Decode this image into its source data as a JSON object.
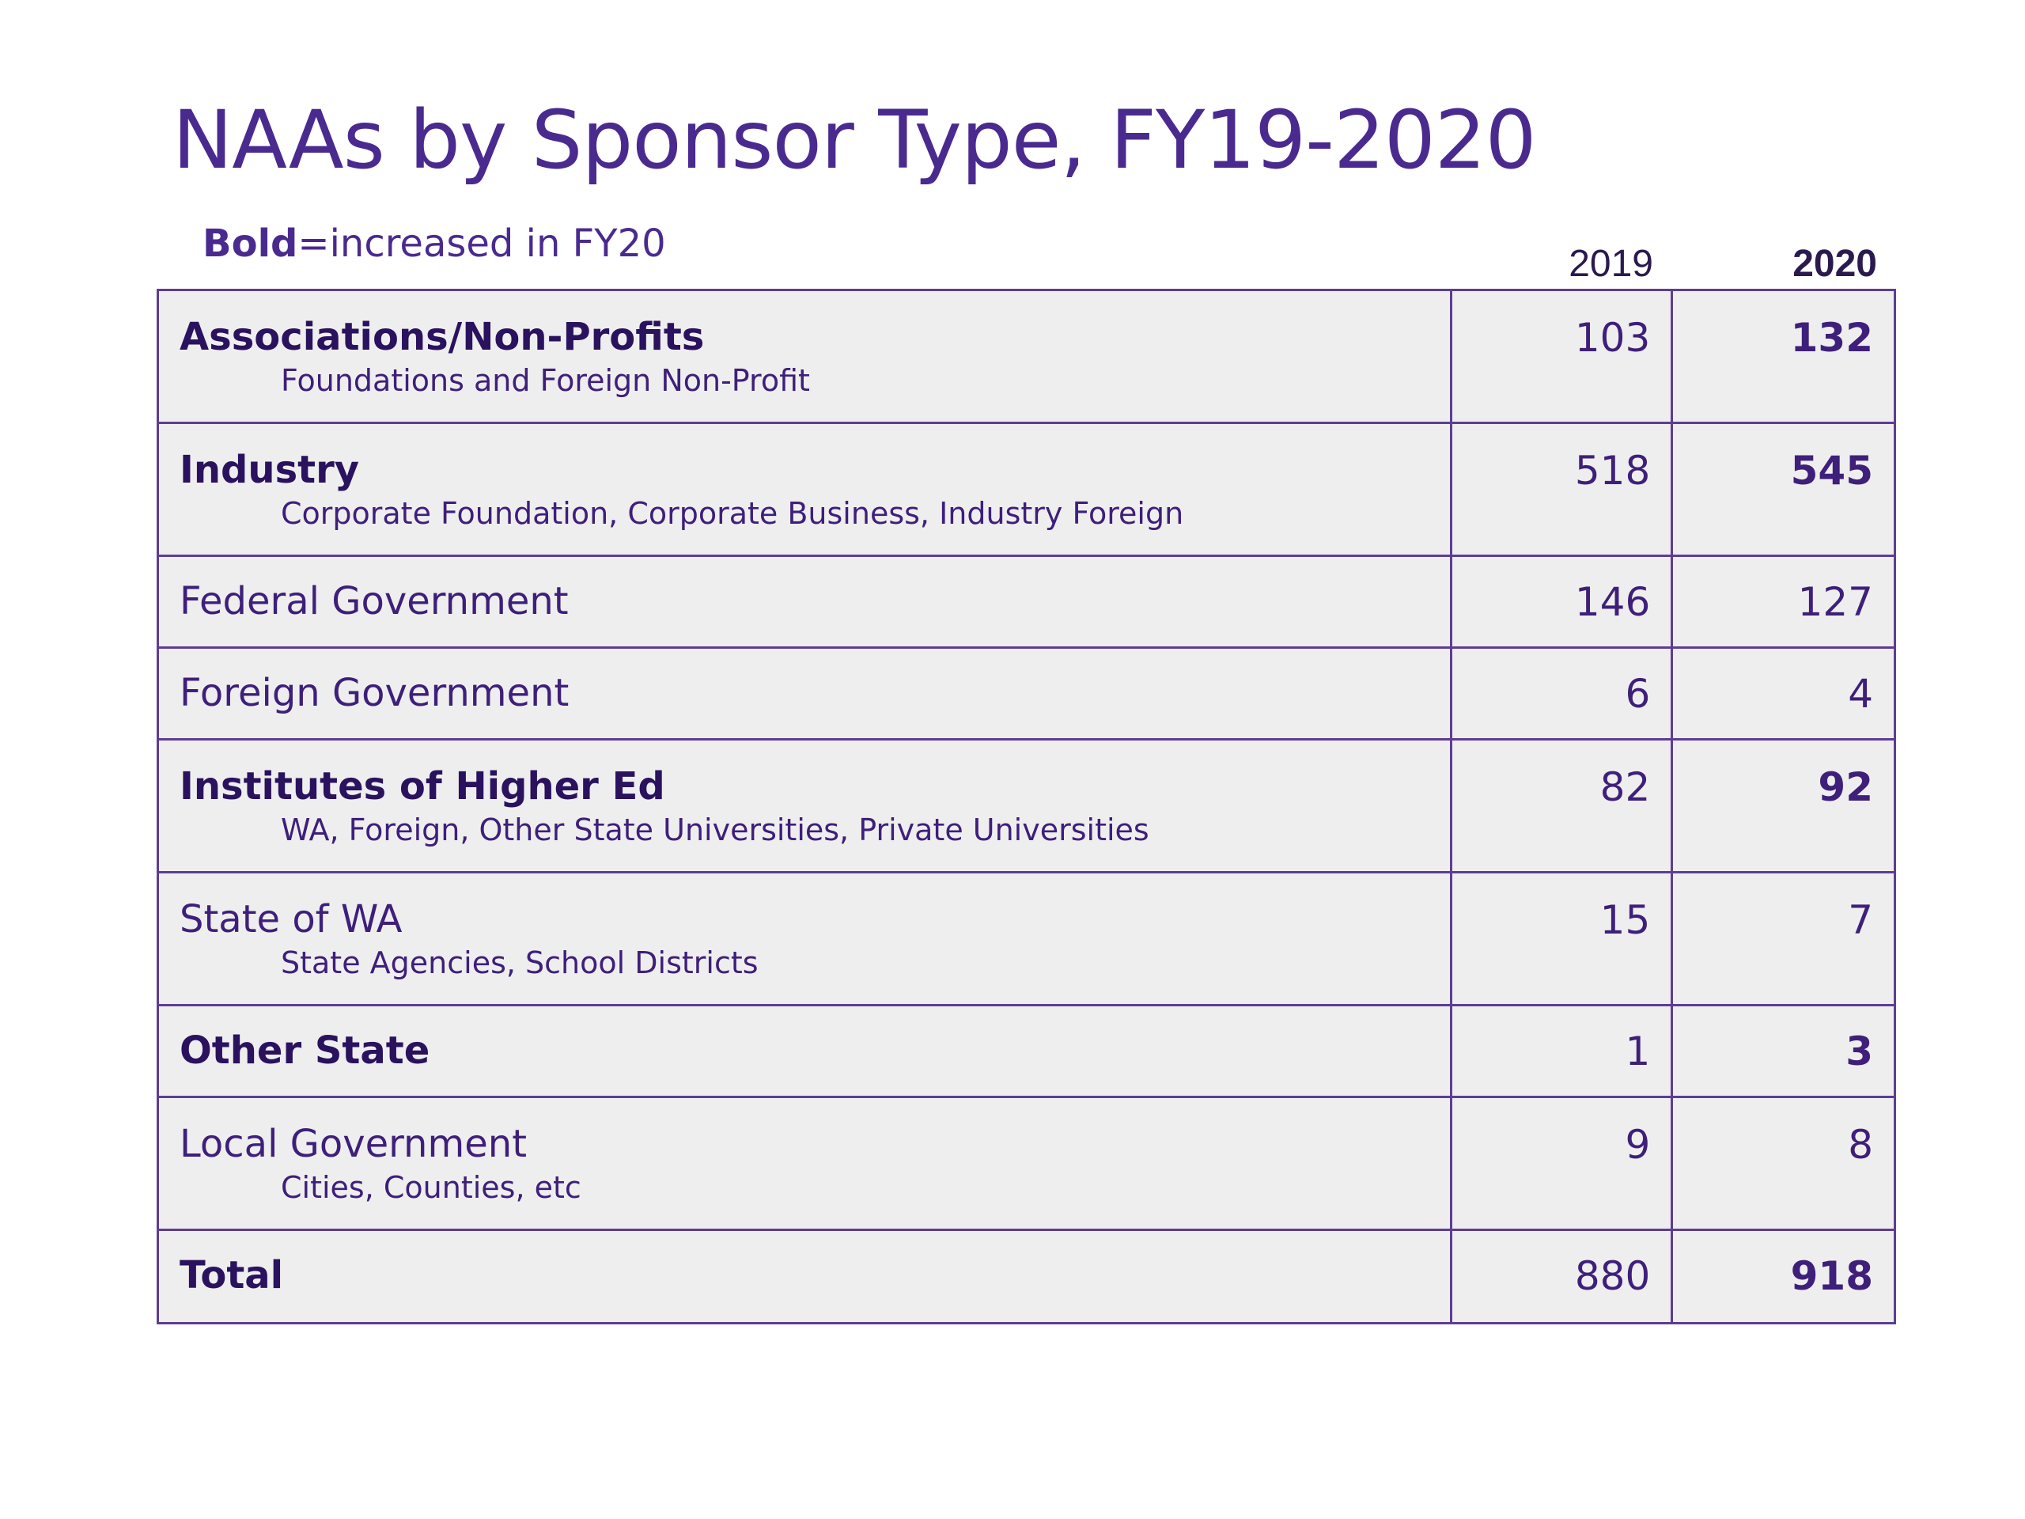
{
  "title": "NAAs by Sponsor Type, FY19-2020",
  "legend": {
    "bold_word": "Bold",
    "rest": "=increased in FY20"
  },
  "columns": {
    "y2019": "2019",
    "y2020": "2020"
  },
  "rows": [
    {
      "label": "Associations/Non-Profits",
      "sub": "Foundations and Foreign Non-Profit",
      "v2019": "103",
      "v2020": "132",
      "increased": true
    },
    {
      "label": "Industry",
      "sub": "Corporate Foundation, Corporate Business, Industry Foreign",
      "v2019": "518",
      "v2020": "545",
      "increased": true
    },
    {
      "label": "Federal Government",
      "sub": "",
      "v2019": "146",
      "v2020": "127",
      "increased": false
    },
    {
      "label": "Foreign Government",
      "sub": "",
      "v2019": "6",
      "v2020": "4",
      "increased": false
    },
    {
      "label": "Institutes of Higher Ed",
      "sub": "WA, Foreign, Other State Universities, Private Universities",
      "v2019": "82",
      "v2020": "92",
      "increased": true
    },
    {
      "label": "State of WA",
      "sub": "State Agencies, School Districts",
      "v2019": "15",
      "v2020": "7",
      "increased": false
    },
    {
      "label": "Other State",
      "sub": "",
      "v2019": "1",
      "v2020": "3",
      "increased": true
    },
    {
      "label": "Local Government",
      "sub": "Cities, Counties, etc",
      "v2019": "9",
      "v2020": "8",
      "increased": false
    },
    {
      "label": "Total",
      "sub": "",
      "v2019": "880",
      "v2020": "918",
      "increased": true
    }
  ],
  "colors": {
    "title": "#4a2a8f",
    "text": "#3e1f7a",
    "border": "#5d3d94",
    "cell_bg": "#efeeef"
  }
}
